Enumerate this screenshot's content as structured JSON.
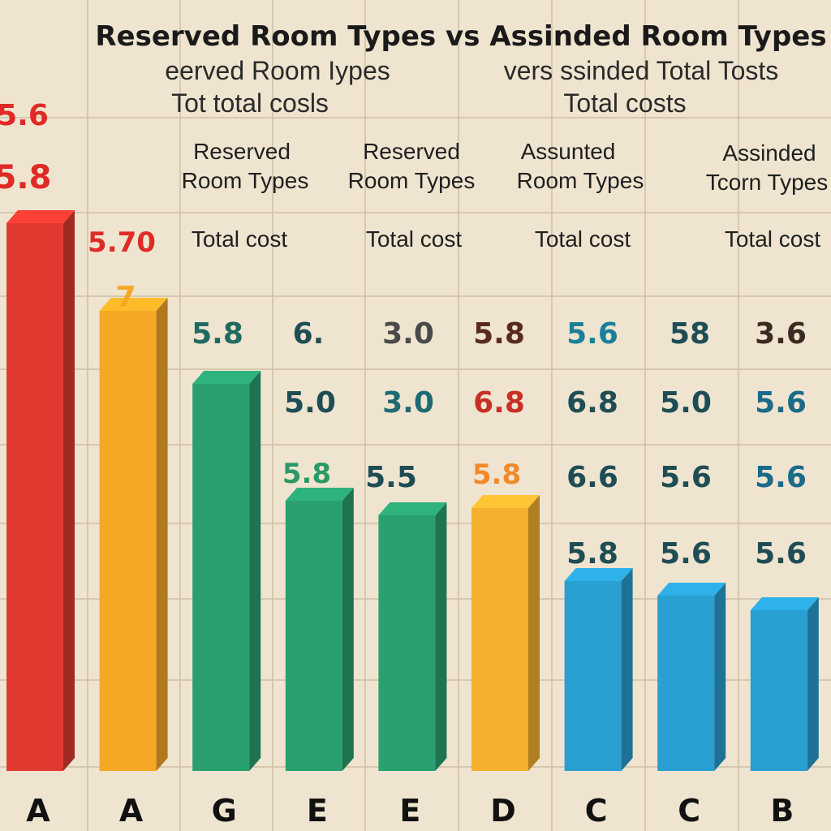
{
  "chart_data": {
    "type": "bar",
    "title": "Reserved Room Types vs Assinded Room Types",
    "subtitle": [
      "eerved Room Iypes",
      "vers ssinded Total Tosts",
      "Tot total cosls",
      "Total costs"
    ],
    "column_headers": [
      "Reserved",
      "Room Types",
      "Reserved",
      "Room Types",
      "Assunted",
      "Room Types",
      "Assinded",
      "Tcorn Types"
    ],
    "column_subheaders": [
      "Total cost",
      "Total cost",
      "Total cost",
      "Total cost"
    ],
    "categories": [
      "A",
      "A",
      "G",
      "E",
      "E",
      "D",
      "C",
      "C",
      "B"
    ],
    "values": [
      7.5,
      6.3,
      5.3,
      3.7,
      3.5,
      3.6,
      2.6,
      2.4,
      2.2
    ],
    "bar_colors": [
      "#e03a30",
      "#f4a825",
      "#2aa070",
      "#2aa070",
      "#2aa070",
      "#f4b02e",
      "#2a9fd2",
      "#2a9fd2",
      "#2a9fd2"
    ],
    "bar_labels": [
      {
        "text": "5.6",
        "color": "#e02a25"
      },
      {
        "text": "5.8",
        "color": "#e02a25"
      },
      {
        "text": "5.70",
        "color": "#e02a25"
      },
      {
        "text": "7",
        "color": "#f4a825"
      },
      {
        "text": "5.8",
        "color": "#2a9a68"
      },
      {
        "text": "5.8",
        "color": "#f08a2a"
      }
    ],
    "table_values": [
      [
        {
          "text": "5.8",
          "color": "#1f6b63"
        },
        {
          "text": "6.",
          "color": "#1f4d55"
        },
        {
          "text": "3.0",
          "color": "#4a4a4a"
        },
        {
          "text": "5.8",
          "color": "#5a2a22"
        },
        {
          "text": "5.6",
          "color": "#1a7f9a"
        },
        {
          "text": "58",
          "color": "#1f4d55"
        },
        {
          "text": "3.6",
          "color": "#3a2a22"
        }
      ],
      [
        {
          "text": "5.0",
          "color": "#1f4d55"
        },
        {
          "text": "3.0",
          "color": "#1f6b73"
        },
        {
          "text": "6.8",
          "color": "#c83025"
        },
        {
          "text": "6.8",
          "color": "#1f4d55"
        },
        {
          "text": "5.0",
          "color": "#1f4d55"
        },
        {
          "text": "5.6",
          "color": "#1a6a8a"
        }
      ],
      [
        {
          "text": "5.5",
          "color": "#1f4d55"
        },
        {
          "text": "6.6",
          "color": "#1f4d55"
        },
        {
          "text": "5.6",
          "color": "#1f4d55"
        },
        {
          "text": "5.6",
          "color": "#1a6a8a"
        }
      ],
      [
        {
          "text": "5.8",
          "color": "#1f4d55"
        },
        {
          "text": "5.6",
          "color": "#1f4d55"
        },
        {
          "text": "5.6",
          "color": "#1f4d55"
        }
      ]
    ],
    "ylim": [
      0,
      10
    ],
    "grid": true,
    "legend": "none",
    "background_color": "#efe4cf"
  }
}
